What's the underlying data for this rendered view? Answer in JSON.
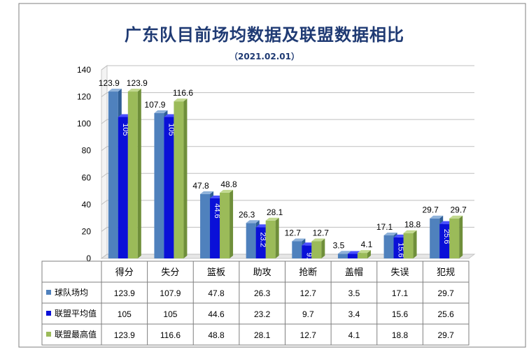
{
  "chart_data": {
    "type": "bar",
    "title": "广东队目前场均数据及联盟数据相比",
    "subtitle": "（2021.02.01）",
    "categories": [
      "得分",
      "失分",
      "篮板",
      "助攻",
      "抢断",
      "盖帽",
      "失误",
      "犯规"
    ],
    "series": [
      {
        "name": "球队场均",
        "values": [
          123.9,
          107.9,
          47.8,
          26.3,
          12.7,
          3.5,
          17.1,
          29.7
        ],
        "color": "#4f81bd"
      },
      {
        "name": "联盟平均值",
        "values": [
          105,
          105,
          44.6,
          23.2,
          9.7,
          3.4,
          15.6,
          25.6
        ],
        "color": "#0a10d8"
      },
      {
        "name": "联盟最高值",
        "values": [
          123.9,
          116.6,
          48.8,
          28.1,
          12.7,
          4.1,
          18.8,
          29.7
        ],
        "color": "#9bbb59"
      }
    ],
    "y_ticks": [
      "0",
      "20",
      "40",
      "60",
      "80",
      "100",
      "120",
      "140"
    ],
    "ylim": [
      0,
      140
    ],
    "grid": true,
    "legend": "data-table",
    "table_values": [
      [
        "123.9",
        "107.9",
        "47.8",
        "26.3",
        "12.7",
        "3.5",
        "17.1",
        "29.7"
      ],
      [
        "105",
        "105",
        "44.6",
        "23.2",
        "9.7",
        "3.4",
        "15.6",
        "25.6"
      ],
      [
        "123.9",
        "116.6",
        "48.8",
        "28.1",
        "12.7",
        "4.1",
        "18.8",
        "29.7"
      ]
    ]
  }
}
